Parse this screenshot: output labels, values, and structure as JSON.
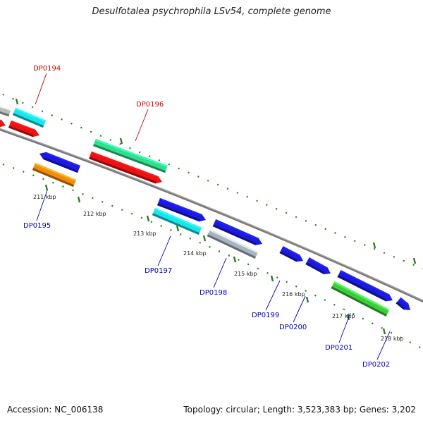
{
  "title": "Desulfotalea psychrophila LSv54, complete genome",
  "footer": {
    "accession": "Accession: NC_006138",
    "summary": "Topology: circular; Length: 3,523,383 bp; Genes: 3,202"
  },
  "colors": {
    "backbone": "#7f7f7f",
    "ticks": "#2a7d1c",
    "label_plus": "#cc0000",
    "label_minus": "#0000bb",
    "blue": "#1a1ae0",
    "cyan": "#19e6ea",
    "red": "#ee1111",
    "orange": "#f08a10",
    "mint": "#2ee08c",
    "green": "#3ccc3c",
    "grey": "#bbbbbb",
    "steel": "#a8b4c0"
  },
  "scale": {
    "kbp_labels": [
      "211 kbp",
      "212 kbp",
      "213 kbp",
      "214 kbp",
      "215 kbp",
      "216 kbp",
      "217 kbp",
      "218 kbp"
    ]
  },
  "genes": [
    {
      "label": "DP0194",
      "strand": "plus",
      "label_color": "red"
    },
    {
      "label": "DP0195",
      "strand": "minus",
      "label_color": "blue"
    },
    {
      "label": "DP0196",
      "strand": "plus",
      "label_color": "red"
    },
    {
      "label": "DP0197",
      "strand": "minus",
      "label_color": "blue"
    },
    {
      "label": "DP0198",
      "strand": "minus",
      "label_color": "blue"
    },
    {
      "label": "DP0199",
      "strand": "minus",
      "label_color": "blue"
    },
    {
      "label": "DP0200",
      "strand": "minus",
      "label_color": "blue"
    },
    {
      "label": "DP0201",
      "strand": "minus",
      "label_color": "blue"
    },
    {
      "label": "DP0202",
      "strand": "minus",
      "label_color": "blue"
    }
  ]
}
